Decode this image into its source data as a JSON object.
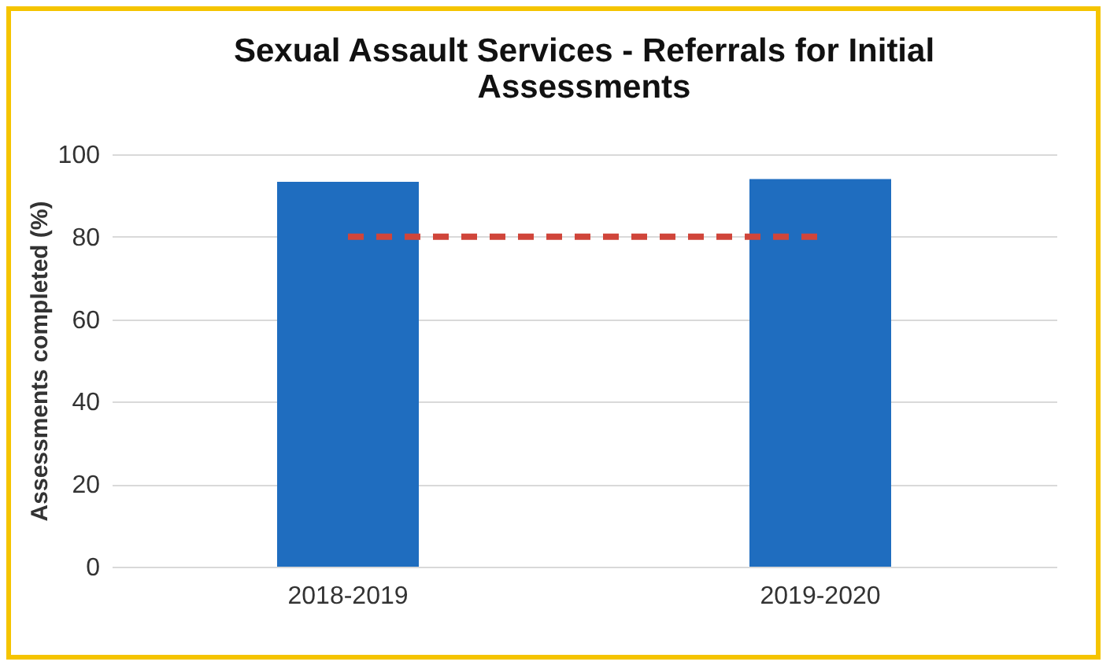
{
  "chart_data": {
    "type": "bar",
    "title": "Sexual Assault Services - Referrals for Initial Assessments",
    "ylabel": "Assessments completed (%)",
    "categories": [
      "2018-2019",
      "2019-2020"
    ],
    "series": [
      {
        "color": "#1f6dbf",
        "values": [
          93.3,
          94
        ]
      },
      {
        "type": "line",
        "color": "#d0453a",
        "line_style": "dashed",
        "values": [
          80,
          80
        ]
      }
    ],
    "ylim": [
      0,
      100
    ],
    "yticks": [
      0,
      20,
      40,
      60,
      80,
      100
    ],
    "grid": "y"
  }
}
